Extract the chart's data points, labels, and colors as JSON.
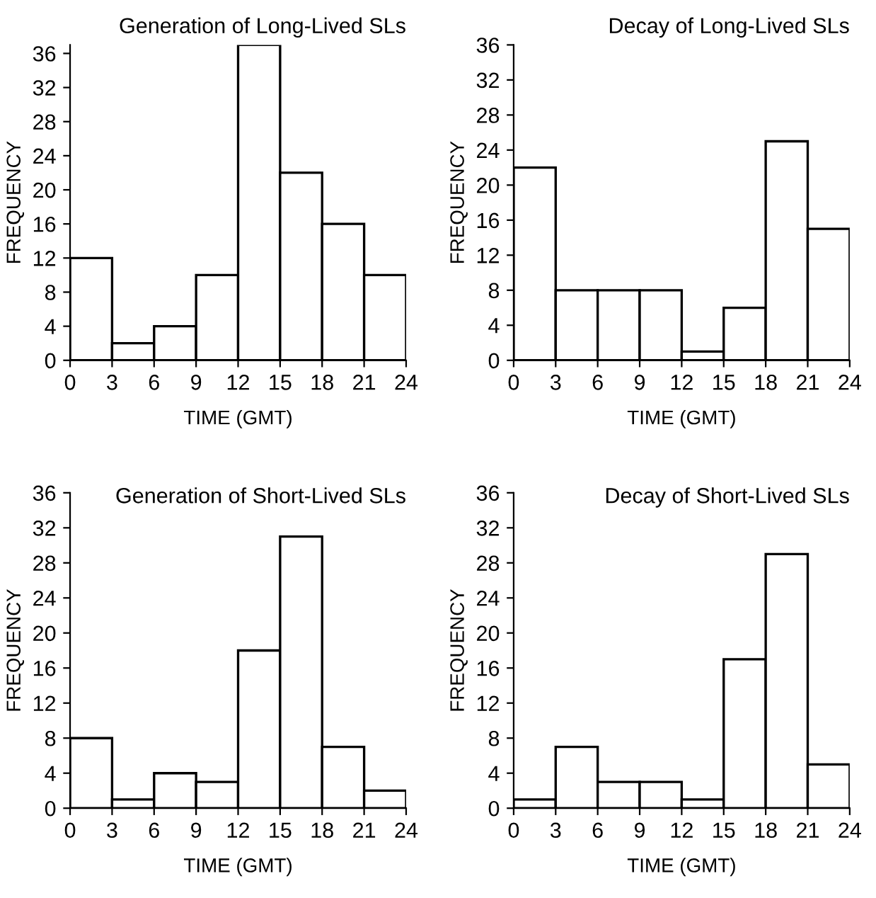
{
  "chart_data": [
    {
      "type": "histogram",
      "title": "Generation of Long-Lived SLs",
      "xlabel": "TIME (GMT)",
      "ylabel": "FREQUENCY",
      "bins": [
        0,
        3,
        6,
        9,
        12,
        15,
        18,
        21,
        24
      ],
      "values": [
        12,
        2,
        4,
        10,
        37,
        22,
        16,
        10
      ],
      "color": "#ffffff",
      "xlim": [
        0,
        24
      ],
      "xticks": [
        0,
        3,
        6,
        9,
        12,
        15,
        18,
        21,
        24
      ],
      "ylim": [
        0,
        37
      ],
      "yticks": [
        0,
        4,
        8,
        12,
        16,
        20,
        24,
        28,
        32,
        36
      ]
    },
    {
      "type": "histogram",
      "title": "Decay of Long-Lived SLs",
      "xlabel": "TIME (GMT)",
      "ylabel": "FREQUENCY",
      "bins": [
        0,
        3,
        6,
        9,
        12,
        15,
        18,
        21,
        24
      ],
      "values": [
        22,
        8,
        8,
        8,
        1,
        6,
        25,
        15
      ],
      "color": "#ffffff",
      "xlim": [
        0,
        24
      ],
      "xticks": [
        0,
        3,
        6,
        9,
        12,
        15,
        18,
        21,
        24
      ],
      "ylim": [
        0,
        36
      ],
      "yticks": [
        0,
        4,
        8,
        12,
        16,
        20,
        24,
        28,
        32,
        36
      ]
    },
    {
      "type": "histogram",
      "title": "Generation of Short-Lived SLs",
      "xlabel": "TIME (GMT)",
      "ylabel": "FREQUENCY",
      "bins": [
        0,
        3,
        6,
        9,
        12,
        15,
        18,
        21,
        24
      ],
      "values": [
        8,
        1,
        4,
        3,
        18,
        31,
        7,
        2
      ],
      "color": "#ffffff",
      "xlim": [
        0,
        24
      ],
      "xticks": [
        0,
        3,
        6,
        9,
        12,
        15,
        18,
        21,
        24
      ],
      "ylim": [
        0,
        36
      ],
      "yticks": [
        0,
        4,
        8,
        12,
        16,
        20,
        24,
        28,
        32,
        36
      ]
    },
    {
      "type": "histogram",
      "title": "Decay of Short-Lived SLs",
      "xlabel": "TIME (GMT)",
      "ylabel": "FREQUENCY",
      "bins": [
        0,
        3,
        6,
        9,
        12,
        15,
        18,
        21,
        24
      ],
      "values": [
        1,
        7,
        3,
        3,
        1,
        17,
        29,
        5
      ],
      "color": "#ffffff",
      "xlim": [
        0,
        24
      ],
      "xticks": [
        0,
        3,
        6,
        9,
        12,
        15,
        18,
        21,
        24
      ],
      "ylim": [
        0,
        36
      ],
      "yticks": [
        0,
        4,
        8,
        12,
        16,
        20,
        24,
        28,
        32,
        36
      ]
    }
  ]
}
